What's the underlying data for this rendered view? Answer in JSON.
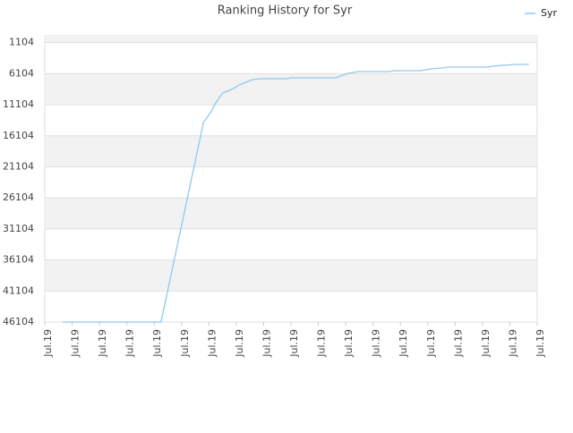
{
  "chart_data": {
    "type": "line",
    "title": "Ranking History for Syr",
    "series": [
      {
        "name": "Syr",
        "color": "#90c8f0",
        "x": [
          6.5,
          42.5,
          58,
          61,
          62.5,
          65,
          69,
          71,
          73.5,
          76,
          78.5,
          88.5,
          90,
          106.5,
          108,
          111,
          114.5,
          126,
          127.5,
          137.5,
          141,
          145.5,
          147,
          162,
          163.5,
          172,
          177
        ],
        "values": [
          46104,
          46104,
          13975,
          12102,
          10806,
          9221,
          8500,
          7924,
          7492,
          7060,
          6916,
          6916,
          6772,
          6772,
          6483,
          6051,
          5763,
          5763,
          5619,
          5619,
          5331,
          5187,
          5043,
          5043,
          4899,
          4610,
          4610
        ]
      }
    ],
    "ylim": [
      46104,
      0
    ],
    "yticks": [
      1104,
      6104,
      11104,
      16104,
      21104,
      26104,
      31104,
      36104,
      41104,
      46104
    ],
    "xlim": [
      0,
      180
    ],
    "xticks": [
      {
        "value": 0,
        "label": "Jul.19"
      },
      {
        "value": 10,
        "label": "Jul.19"
      },
      {
        "value": 20,
        "label": "Jul.19"
      },
      {
        "value": 30,
        "label": "Jul.19"
      },
      {
        "value": 40,
        "label": "Jul.19"
      },
      {
        "value": 50,
        "label": "Jul.19"
      },
      {
        "value": 60,
        "label": "Jul.19"
      },
      {
        "value": 70,
        "label": "Jul.19"
      },
      {
        "value": 80,
        "label": "Jul.19"
      },
      {
        "value": 90,
        "label": "Jul.19"
      },
      {
        "value": 100,
        "label": "Jul.19"
      },
      {
        "value": 110,
        "label": "Jul.19"
      },
      {
        "value": 120,
        "label": "Jul.19"
      },
      {
        "value": 130,
        "label": "Jul.19"
      },
      {
        "value": 140,
        "label": "Jul.19"
      },
      {
        "value": 150,
        "label": "Jul.19"
      },
      {
        "value": 160,
        "label": "Jul.19"
      },
      {
        "value": 170,
        "label": "Jul.19"
      },
      {
        "value": 180,
        "label": "Jul.19"
      }
    ],
    "grid": true,
    "legend": "top-right"
  }
}
